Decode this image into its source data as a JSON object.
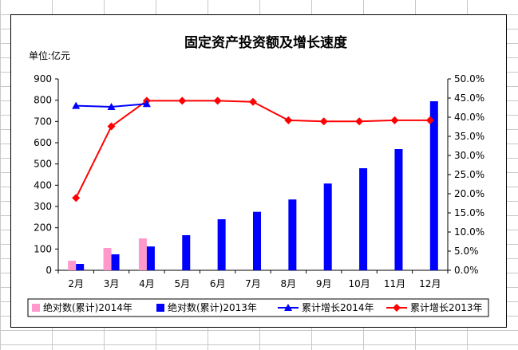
{
  "chart_data": {
    "type": "bar",
    "title": "固定资产投资额及增长速度",
    "unit_label": "单位:亿元",
    "categories": [
      "2月",
      "3月",
      "4月",
      "5月",
      "6月",
      "7月",
      "8月",
      "9月",
      "10月",
      "11月",
      "12月"
    ],
    "y_left": {
      "min": 0,
      "max": 900,
      "step": 100,
      "ticks": [
        "0",
        "100",
        "200",
        "300",
        "400",
        "500",
        "600",
        "700",
        "800",
        "900"
      ]
    },
    "y_right": {
      "min": 0,
      "max": 50,
      "step": 5,
      "ticks": [
        "0.0%",
        "5.0%",
        "10.0%",
        "15.0%",
        "20.0%",
        "25.0%",
        "30.0%",
        "35.0%",
        "40.0%",
        "45.0%",
        "50.0%"
      ]
    },
    "grid": false,
    "legend_position": "bottom",
    "series": [
      {
        "name": "绝对数(累计)2014年",
        "kind": "bar",
        "axis": "left",
        "color": "#FF99CC",
        "values": [
          45,
          105,
          150,
          null,
          null,
          null,
          null,
          null,
          null,
          null,
          null
        ]
      },
      {
        "name": "绝对数(累计)2013年",
        "kind": "bar",
        "axis": "left",
        "color": "#0000FF",
        "values": [
          30,
          75,
          112,
          165,
          240,
          275,
          333,
          408,
          480,
          570,
          795
        ]
      },
      {
        "name": "累计增长2014年",
        "kind": "line",
        "axis": "right",
        "color": "#0000FF",
        "marker": "triangle",
        "values": [
          43.0,
          42.7,
          43.5,
          null,
          null,
          null,
          null,
          null,
          null,
          null,
          null
        ]
      },
      {
        "name": "累计增长2013年",
        "kind": "line",
        "axis": "right",
        "color": "#FF0000",
        "marker": "diamond",
        "values": [
          18.9,
          37.6,
          44.3,
          44.3,
          44.3,
          44.0,
          39.2,
          38.9,
          38.9,
          39.2,
          39.2
        ]
      }
    ]
  }
}
